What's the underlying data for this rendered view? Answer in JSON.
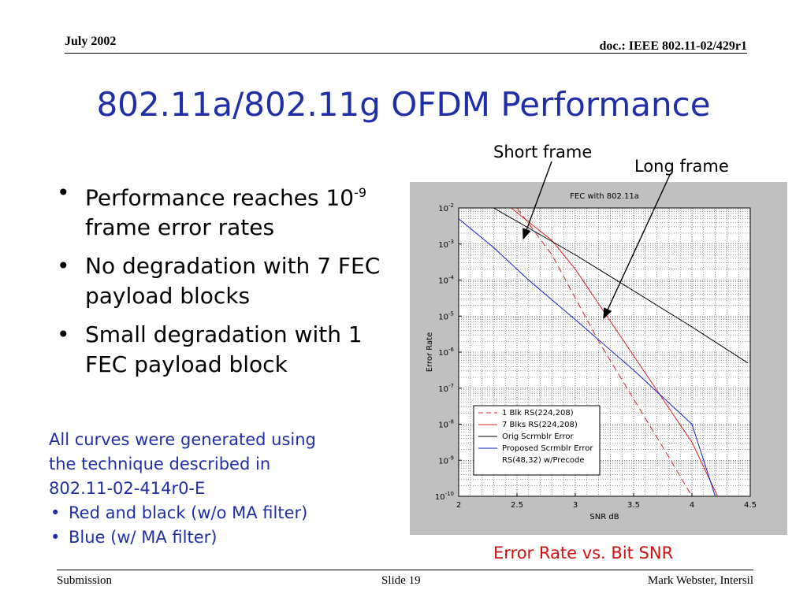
{
  "header": {
    "date": "July 2002",
    "doc": "doc.: IEEE 802.11-02/429r1"
  },
  "title": "802.11a/802.11g OFDM Performance",
  "bullets": [
    {
      "pre": "Performance reaches 10",
      "sup": "-9",
      "post": " frame error rates"
    },
    {
      "pre": "No degradation with 7 FEC payload blocks",
      "sup": "",
      "post": ""
    },
    {
      "pre": "Small degradation with 1 FEC payload block",
      "sup": "",
      "post": ""
    }
  ],
  "note": {
    "lines": [
      "All curves were generated using",
      "the technique described in",
      "802.11-02-414r0-E"
    ],
    "items": [
      "Red and black (w/o MA filter)",
      "Blue  (w/ MA filter)"
    ]
  },
  "annotations": {
    "short_frame": "Short frame",
    "long_frame": "Long frame"
  },
  "caption": "Error Rate vs. Bit SNR",
  "footer": {
    "left": "Submission",
    "middle": "Slide 19",
    "right": "Mark Webster, Intersil"
  },
  "colors": {
    "title_blue": "#1f2fa8",
    "caption_red": "#d01010",
    "series_red": "#e02020",
    "series_black": "#000000",
    "series_blue": "#1020d0"
  },
  "chart_data": {
    "type": "line",
    "title": "FEC with 802.11a",
    "xlabel": "SNR dB",
    "ylabel": "Error Rate",
    "xlim": [
      2,
      4.5
    ],
    "ylim": [
      1e-10,
      0.01
    ],
    "yscale": "log",
    "grid": true,
    "legend_position": "bottom-right",
    "xticks": [
      "2",
      "2.5",
      "3",
      "3.5",
      "4",
      "4.5"
    ],
    "yticks": [
      {
        "base": "10",
        "exp": "-2"
      },
      {
        "base": "10",
        "exp": "-3"
      },
      {
        "base": "10",
        "exp": "-4"
      },
      {
        "base": "10",
        "exp": "-5"
      },
      {
        "base": "10",
        "exp": "-6"
      },
      {
        "base": "10",
        "exp": "-7"
      },
      {
        "base": "10",
        "exp": "-8"
      },
      {
        "base": "10",
        "exp": "-9"
      },
      {
        "base": "10",
        "exp": "-10"
      }
    ],
    "series": [
      {
        "name": "1 Blk RS(224,208)",
        "color": "#e02020",
        "dash": "dashed",
        "points": [
          [
            2.5,
            0.01
          ],
          [
            2.8,
            0.0005
          ],
          [
            3.0,
            3.16e-05
          ],
          [
            3.2,
            2e-06
          ],
          [
            3.5,
            5.01e-08
          ],
          [
            3.8,
            1.26e-09
          ],
          [
            4.0,
            1e-10
          ]
        ]
      },
      {
        "name": "7 Blks RS(224,208)",
        "color": "#e02020",
        "dash": "solid",
        "points": [
          [
            2.45,
            0.01
          ],
          [
            2.8,
            0.00126
          ],
          [
            3.0,
            0.0002
          ],
          [
            3.25,
            1.26e-05
          ],
          [
            3.5,
            7.94e-07
          ],
          [
            4.0,
            3.16e-09
          ],
          [
            4.22,
            1e-10
          ]
        ]
      },
      {
        "name": "Orig Scrmblr Error",
        "color": "#000000",
        "dash": "solid",
        "points": [
          [
            2.3,
            0.01
          ],
          [
            3.0,
            0.0005
          ],
          [
            3.5,
            5.01e-05
          ],
          [
            4.0,
            5e-06
          ],
          [
            4.48,
            5e-07
          ]
        ]
      },
      {
        "name": "Proposed Scrmblr Error RS(48,32) w/Precode",
        "color": "#1020d0",
        "dash": "solid",
        "points": [
          [
            2.0,
            0.00501
          ],
          [
            2.3,
            0.000794
          ],
          [
            2.6,
            0.0001
          ],
          [
            3.0,
            7.94e-06
          ],
          [
            3.5,
            3.16e-07
          ],
          [
            4.0,
            1e-08
          ],
          [
            4.2,
            1e-10
          ]
        ]
      }
    ]
  }
}
